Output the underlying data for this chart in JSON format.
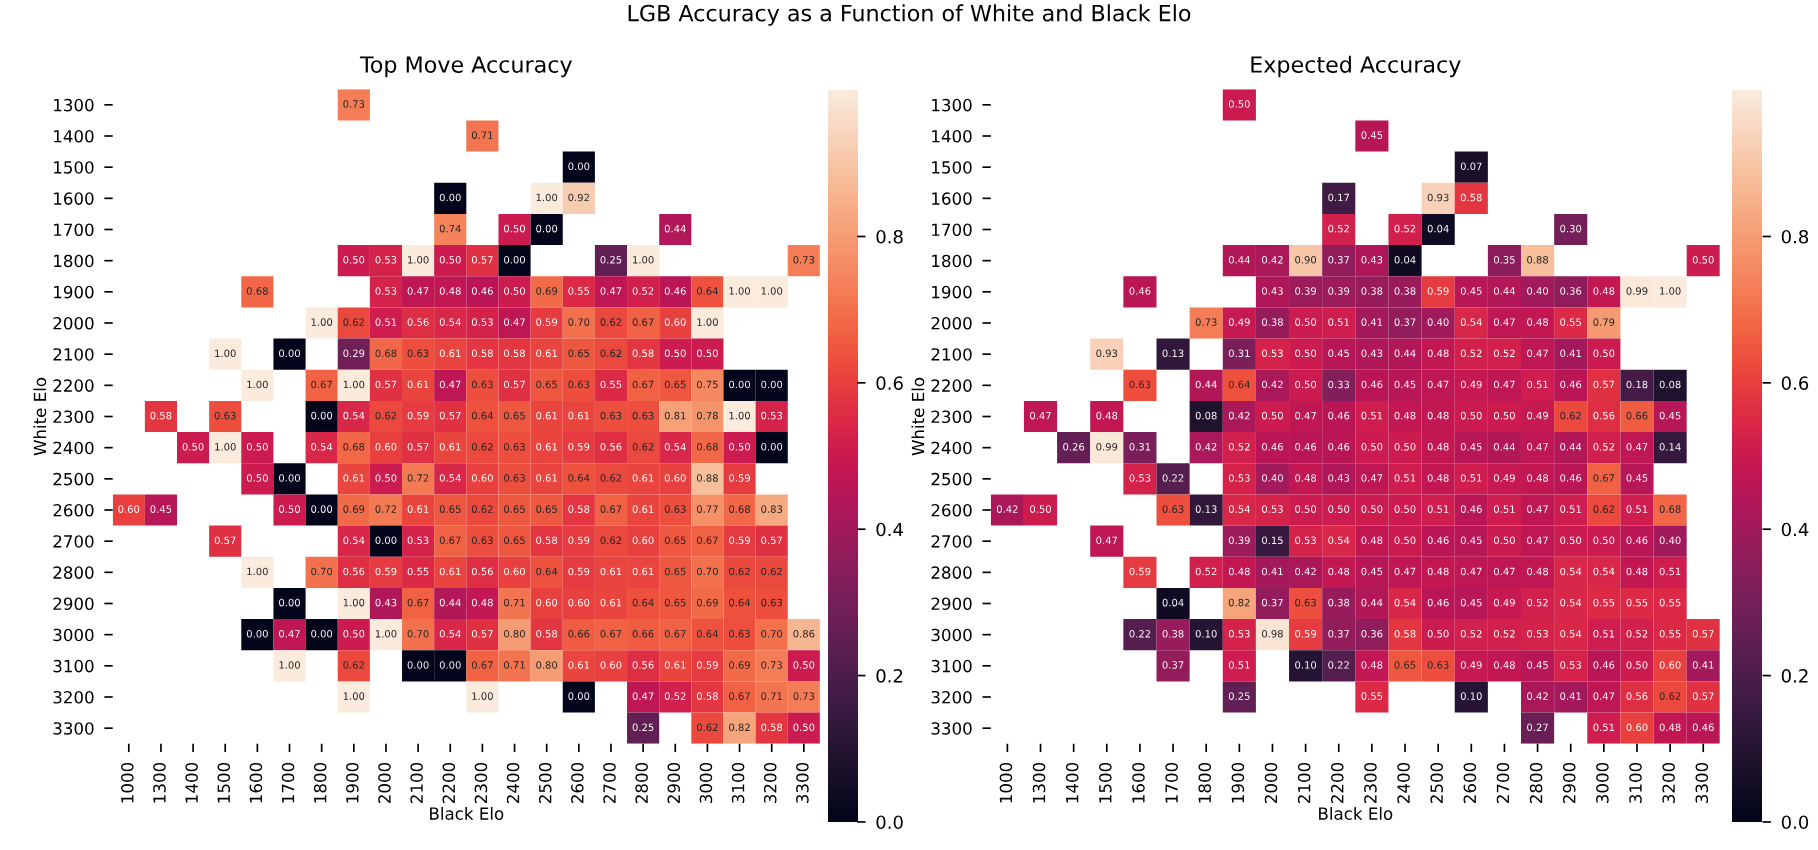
{
  "chart_data": [
    {
      "type": "heatmap",
      "title": "Top Move Accuracy",
      "xlabel": "Black Elo",
      "ylabel": "White Elo",
      "annotations": [
        "LGB Accuracy as a Function of White and Black Elo"
      ],
      "categories": [
        "1000",
        "1300",
        "1400",
        "1500",
        "1600",
        "1700",
        "1800",
        "1900",
        "2000",
        "2100",
        "2200",
        "2300",
        "2400",
        "2500",
        "2600",
        "2700",
        "2800",
        "2900",
        "3000",
        "3100",
        "3200",
        "3300"
      ],
      "y_categories": [
        "1300",
        "1400",
        "1500",
        "1600",
        "1700",
        "1800",
        "1900",
        "2000",
        "2100",
        "2200",
        "2300",
        "2400",
        "2500",
        "2600",
        "2700",
        "2800",
        "2900",
        "3000",
        "3100",
        "3200",
        "3300"
      ],
      "clim": [
        0,
        1
      ],
      "cticks": [
        {
          "value": 0,
          "label": "0.0"
        },
        {
          "value": 0.2,
          "label": "0.2"
        },
        {
          "value": 0.4,
          "label": "0.4"
        },
        {
          "value": 0.6,
          "label": "0.6"
        },
        {
          "value": 0.8,
          "label": "0.8"
        }
      ],
      "cell_labels": [
        [
          null,
          null,
          null,
          null,
          null,
          null,
          null,
          "0.73",
          null,
          null,
          null,
          null,
          null,
          null,
          null,
          null,
          null,
          null,
          null,
          null,
          null,
          null
        ],
        [
          null,
          null,
          null,
          null,
          null,
          null,
          null,
          null,
          null,
          null,
          null,
          "0.71",
          null,
          null,
          null,
          null,
          null,
          null,
          null,
          null,
          null,
          null
        ],
        [
          null,
          null,
          null,
          null,
          null,
          null,
          null,
          null,
          null,
          null,
          null,
          null,
          null,
          null,
          "0.00",
          null,
          null,
          null,
          null,
          null,
          null,
          null
        ],
        [
          null,
          null,
          null,
          null,
          null,
          null,
          null,
          null,
          null,
          null,
          "0.00",
          null,
          null,
          "1.00",
          "0.92",
          null,
          null,
          null,
          null,
          null,
          null,
          null
        ],
        [
          null,
          null,
          null,
          null,
          null,
          null,
          null,
          null,
          null,
          null,
          "0.74",
          null,
          "0.50",
          "0.00",
          null,
          null,
          null,
          "0.44",
          null,
          null,
          null,
          null
        ],
        [
          null,
          null,
          null,
          null,
          null,
          null,
          null,
          "0.50",
          "0.53",
          "1.00",
          "0.50",
          "0.57",
          "0.00",
          null,
          null,
          "0.25",
          "1.00",
          null,
          null,
          null,
          null,
          "0.73"
        ],
        [
          null,
          null,
          null,
          null,
          "0.68",
          null,
          null,
          null,
          "0.53",
          "0.47",
          "0.48",
          "0.46",
          "0.50",
          "0.69",
          "0.55",
          "0.47",
          "0.52",
          "0.46",
          "0.64",
          "1.00",
          "1.00",
          null
        ],
        [
          null,
          null,
          null,
          null,
          null,
          null,
          "1.00",
          "0.62",
          "0.51",
          "0.56",
          "0.54",
          "0.53",
          "0.47",
          "0.59",
          "0.70",
          "0.62",
          "0.67",
          "0.60",
          "1.00",
          null,
          null,
          null
        ],
        [
          null,
          null,
          null,
          "1.00",
          null,
          "0.00",
          null,
          "0.29",
          "0.68",
          "0.63",
          "0.61",
          "0.58",
          "0.58",
          "0.61",
          "0.65",
          "0.62",
          "0.58",
          "0.50",
          "0.50",
          null,
          null,
          null
        ],
        [
          null,
          null,
          null,
          null,
          "1.00",
          null,
          "0.67",
          "1.00",
          "0.57",
          "0.61",
          "0.47",
          "0.63",
          "0.57",
          "0.65",
          "0.63",
          "0.55",
          "0.67",
          "0.65",
          "0.75",
          "0.00",
          "0.00",
          null
        ],
        [
          null,
          "0.58",
          null,
          "0.63",
          null,
          null,
          "0.00",
          "0.54",
          "0.62",
          "0.59",
          "0.57",
          "0.64",
          "0.65",
          "0.61",
          "0.61",
          "0.63",
          "0.63",
          "0.81",
          "0.78",
          "1.00",
          "0.53",
          null
        ],
        [
          null,
          null,
          "0.50",
          "1.00",
          "0.50",
          null,
          "0.54",
          "0.68",
          "0.60",
          "0.57",
          "0.61",
          "0.62",
          "0.63",
          "0.61",
          "0.59",
          "0.56",
          "0.62",
          "0.54",
          "0.68",
          "0.50",
          "0.00",
          null
        ],
        [
          null,
          null,
          null,
          null,
          "0.50",
          "0.00",
          null,
          "0.61",
          "0.50",
          "0.72",
          "0.54",
          "0.60",
          "0.63",
          "0.61",
          "0.64",
          "0.62",
          "0.61",
          "0.60",
          "0.88",
          "0.59",
          null,
          null
        ],
        [
          "0.60",
          "0.45",
          null,
          null,
          null,
          "0.50",
          "0.00",
          "0.69",
          "0.72",
          "0.61",
          "0.65",
          "0.62",
          "0.65",
          "0.65",
          "0.58",
          "0.67",
          "0.61",
          "0.63",
          "0.77",
          "0.68",
          "0.83",
          null
        ],
        [
          null,
          null,
          null,
          "0.57",
          null,
          null,
          null,
          "0.54",
          "0.00",
          "0.53",
          "0.67",
          "0.63",
          "0.65",
          "0.58",
          "0.59",
          "0.62",
          "0.60",
          "0.65",
          "0.67",
          "0.59",
          "0.57",
          null
        ],
        [
          null,
          null,
          null,
          null,
          "1.00",
          null,
          "0.70",
          "0.56",
          "0.59",
          "0.55",
          "0.61",
          "0.56",
          "0.60",
          "0.64",
          "0.59",
          "0.61",
          "0.61",
          "0.65",
          "0.70",
          "0.62",
          "0.62",
          null
        ],
        [
          null,
          null,
          null,
          null,
          null,
          "0.00",
          null,
          "1.00",
          "0.43",
          "0.67",
          "0.44",
          "0.48",
          "0.71",
          "0.60",
          "0.60",
          "0.61",
          "0.64",
          "0.65",
          "0.69",
          "0.64",
          "0.63",
          null
        ],
        [
          null,
          null,
          null,
          null,
          "0.00",
          "0.47",
          "0.00",
          "0.50",
          "1.00",
          "0.70",
          "0.54",
          "0.57",
          "0.80",
          "0.58",
          "0.66",
          "0.67",
          "0.66",
          "0.67",
          "0.64",
          "0.63",
          "0.70",
          "0.86"
        ],
        [
          null,
          null,
          null,
          null,
          null,
          "1.00",
          null,
          "0.62",
          null,
          "0.00",
          "0.00",
          "0.67",
          "0.71",
          "0.80",
          "0.61",
          "0.60",
          "0.56",
          "0.61",
          "0.59",
          "0.69",
          "0.73",
          "0.50"
        ],
        [
          null,
          null,
          null,
          null,
          null,
          null,
          null,
          "1.00",
          null,
          null,
          null,
          "1.00",
          null,
          null,
          "0.00",
          null,
          "0.47",
          "0.52",
          "0.58",
          "0.67",
          "0.71",
          "0.73"
        ],
        [
          null,
          null,
          null,
          null,
          null,
          null,
          null,
          null,
          null,
          null,
          null,
          null,
          null,
          null,
          null,
          null,
          "0.25",
          null,
          "0.62",
          "0.82",
          "0.58",
          "0.50"
        ]
      ],
      "cells": [
        [
          null,
          null,
          null,
          null,
          null,
          null,
          null,
          0.73,
          null,
          null,
          null,
          null,
          null,
          null,
          null,
          null,
          null,
          null,
          null,
          null,
          null,
          null
        ],
        [
          null,
          null,
          null,
          null,
          null,
          null,
          null,
          null,
          null,
          null,
          null,
          0.71,
          null,
          null,
          null,
          null,
          null,
          null,
          null,
          null,
          null,
          null
        ],
        [
          null,
          null,
          null,
          null,
          null,
          null,
          null,
          null,
          null,
          null,
          null,
          null,
          null,
          null,
          0.0,
          null,
          null,
          null,
          null,
          null,
          null,
          null
        ],
        [
          null,
          null,
          null,
          null,
          null,
          null,
          null,
          null,
          null,
          null,
          0.0,
          null,
          null,
          1.0,
          0.92,
          null,
          null,
          null,
          null,
          null,
          null,
          null
        ],
        [
          null,
          null,
          null,
          null,
          null,
          null,
          null,
          null,
          null,
          null,
          0.74,
          null,
          0.5,
          0.0,
          null,
          null,
          null,
          0.44,
          null,
          null,
          null,
          null
        ],
        [
          null,
          null,
          null,
          null,
          null,
          null,
          null,
          0.5,
          0.53,
          1.0,
          0.5,
          0.57,
          0.0,
          null,
          null,
          0.25,
          1.0,
          null,
          null,
          null,
          null,
          0.73
        ],
        [
          null,
          null,
          null,
          null,
          0.68,
          null,
          null,
          null,
          0.53,
          0.47,
          0.48,
          0.46,
          0.5,
          0.69,
          0.55,
          0.47,
          0.52,
          0.46,
          0.64,
          1.0,
          1.0,
          null
        ],
        [
          null,
          null,
          null,
          null,
          null,
          null,
          1.0,
          0.62,
          0.51,
          0.56,
          0.54,
          0.53,
          0.47,
          0.59,
          0.7,
          0.62,
          0.67,
          0.6,
          1.0,
          null,
          null,
          null
        ],
        [
          null,
          null,
          null,
          1.0,
          null,
          0.0,
          null,
          0.29,
          0.68,
          0.63,
          0.61,
          0.58,
          0.58,
          0.61,
          0.65,
          0.62,
          0.58,
          0.5,
          0.5,
          null,
          null,
          null
        ],
        [
          null,
          null,
          null,
          null,
          1.0,
          null,
          0.67,
          1.0,
          0.57,
          0.61,
          0.47,
          0.63,
          0.57,
          0.65,
          0.63,
          0.55,
          0.67,
          0.65,
          0.75,
          0.0,
          0.0,
          null
        ],
        [
          null,
          0.58,
          null,
          0.63,
          null,
          null,
          0.0,
          0.54,
          0.62,
          0.59,
          0.57,
          0.64,
          0.65,
          0.61,
          0.61,
          0.63,
          0.63,
          0.81,
          0.78,
          1.0,
          0.53,
          null
        ],
        [
          null,
          null,
          0.5,
          1.0,
          0.5,
          null,
          0.54,
          0.68,
          0.6,
          0.57,
          0.61,
          0.62,
          0.63,
          0.61,
          0.59,
          0.56,
          0.62,
          0.54,
          0.68,
          0.5,
          0.0,
          null
        ],
        [
          null,
          null,
          null,
          null,
          0.5,
          0.0,
          null,
          0.61,
          0.5,
          0.72,
          0.54,
          0.6,
          0.63,
          0.61,
          0.64,
          0.62,
          0.61,
          0.6,
          0.88,
          0.59,
          null,
          null
        ],
        [
          0.6,
          0.45,
          null,
          null,
          null,
          0.5,
          0.0,
          0.69,
          0.72,
          0.61,
          0.65,
          0.62,
          0.65,
          0.65,
          0.58,
          0.67,
          0.61,
          0.63,
          0.77,
          0.68,
          0.83,
          null
        ],
        [
          null,
          null,
          null,
          0.57,
          null,
          null,
          null,
          0.54,
          0.0,
          0.53,
          0.67,
          0.63,
          0.65,
          0.58,
          0.59,
          0.62,
          0.6,
          0.65,
          0.67,
          0.59,
          0.57,
          null
        ],
        [
          null,
          null,
          null,
          null,
          1.0,
          null,
          0.7,
          0.56,
          0.59,
          0.55,
          0.61,
          0.56,
          0.6,
          0.64,
          0.59,
          0.61,
          0.61,
          0.65,
          0.7,
          0.62,
          0.62,
          null
        ],
        [
          null,
          null,
          null,
          null,
          null,
          0.0,
          null,
          1.0,
          0.43,
          0.67,
          0.44,
          0.48,
          0.71,
          0.6,
          0.6,
          0.61,
          0.64,
          0.65,
          0.69,
          0.64,
          0.63,
          null
        ],
        [
          null,
          null,
          null,
          null,
          0.0,
          0.47,
          0.0,
          0.5,
          1.0,
          0.7,
          0.54,
          0.57,
          0.8,
          0.58,
          0.66,
          0.67,
          0.66,
          0.67,
          0.64,
          0.63,
          0.7,
          0.86
        ],
        [
          null,
          null,
          null,
          null,
          null,
          1.0,
          null,
          0.62,
          null,
          0.0,
          0.0,
          0.67,
          0.71,
          0.8,
          0.61,
          0.6,
          0.56,
          0.61,
          0.59,
          0.69,
          0.73,
          0.5
        ],
        [
          null,
          null,
          null,
          null,
          null,
          null,
          null,
          1.0,
          null,
          null,
          null,
          1.0,
          null,
          null,
          0.0,
          null,
          0.47,
          0.52,
          0.58,
          0.67,
          0.71,
          0.73
        ],
        [
          null,
          null,
          null,
          null,
          null,
          null,
          null,
          null,
          null,
          null,
          null,
          null,
          null,
          null,
          null,
          null,
          0.25,
          null,
          0.62,
          0.82,
          0.58,
          0.5
        ]
      ]
    },
    {
      "type": "heatmap",
      "title": "Expected Accuracy",
      "xlabel": "Black Elo",
      "ylabel": "White Elo",
      "categories": [
        "1000",
        "1300",
        "1400",
        "1500",
        "1600",
        "1700",
        "1800",
        "1900",
        "2000",
        "2100",
        "2200",
        "2300",
        "2400",
        "2500",
        "2600",
        "2700",
        "2800",
        "2900",
        "3000",
        "3100",
        "3200",
        "3300"
      ],
      "y_categories": [
        "1300",
        "1400",
        "1500",
        "1600",
        "1700",
        "1800",
        "1900",
        "2000",
        "2100",
        "2200",
        "2300",
        "2400",
        "2500",
        "2600",
        "2700",
        "2800",
        "2900",
        "3000",
        "3100",
        "3200",
        "3300"
      ],
      "clim": [
        0,
        1
      ],
      "cticks": [
        {
          "value": 0,
          "label": "0.0"
        },
        {
          "value": 0.2,
          "label": "0.2"
        },
        {
          "value": 0.4,
          "label": "0.4"
        },
        {
          "value": 0.6,
          "label": "0.6"
        },
        {
          "value": 0.8,
          "label": "0.8"
        }
      ],
      "cell_labels": [
        [
          null,
          null,
          null,
          null,
          null,
          null,
          null,
          "0.50",
          null,
          null,
          null,
          null,
          null,
          null,
          null,
          null,
          null,
          null,
          null,
          null,
          null,
          null
        ],
        [
          null,
          null,
          null,
          null,
          null,
          null,
          null,
          null,
          null,
          null,
          null,
          "0.45",
          null,
          null,
          null,
          null,
          null,
          null,
          null,
          null,
          null,
          null
        ],
        [
          null,
          null,
          null,
          null,
          null,
          null,
          null,
          null,
          null,
          null,
          null,
          null,
          null,
          null,
          "0.07",
          null,
          null,
          null,
          null,
          null,
          null,
          null
        ],
        [
          null,
          null,
          null,
          null,
          null,
          null,
          null,
          null,
          null,
          null,
          "0.17",
          null,
          null,
          "0.93",
          "0.58",
          null,
          null,
          null,
          null,
          null,
          null,
          null
        ],
        [
          null,
          null,
          null,
          null,
          null,
          null,
          null,
          null,
          null,
          null,
          "0.52",
          null,
          "0.52",
          "0.04",
          null,
          null,
          null,
          "0.30",
          null,
          null,
          null,
          null
        ],
        [
          null,
          null,
          null,
          null,
          null,
          null,
          null,
          "0.44",
          "0.42",
          "0.90",
          "0.37",
          "0.43",
          "0.04",
          null,
          null,
          "0.35",
          "0.88",
          null,
          null,
          null,
          null,
          "0.50"
        ],
        [
          null,
          null,
          null,
          null,
          "0.46",
          null,
          null,
          null,
          "0.43",
          "0.39",
          "0.39",
          "0.38",
          "0.38",
          "0.59",
          "0.45",
          "0.44",
          "0.40",
          "0.36",
          "0.48",
          "0.99",
          "1.00",
          null
        ],
        [
          null,
          null,
          null,
          null,
          null,
          null,
          "0.73",
          "0.49",
          "0.38",
          "0.50",
          "0.51",
          "0.41",
          "0.37",
          "0.40",
          "0.54",
          "0.47",
          "0.48",
          "0.55",
          "0.79",
          null,
          null,
          null
        ],
        [
          null,
          null,
          null,
          "0.93",
          null,
          "0.13",
          null,
          "0.31",
          "0.53",
          "0.50",
          "0.45",
          "0.43",
          "0.44",
          "0.48",
          "0.52",
          "0.52",
          "0.47",
          "0.41",
          "0.50",
          null,
          null,
          null
        ],
        [
          null,
          null,
          null,
          null,
          "0.63",
          null,
          "0.44",
          "0.64",
          "0.42",
          "0.50",
          "0.33",
          "0.46",
          "0.45",
          "0.47",
          "0.49",
          "0.47",
          "0.51",
          "0.46",
          "0.57",
          "0.18",
          "0.08",
          null
        ],
        [
          null,
          "0.47",
          null,
          "0.48",
          null,
          null,
          "0.08",
          "0.42",
          "0.50",
          "0.47",
          "0.46",
          "0.51",
          "0.48",
          "0.48",
          "0.50",
          "0.50",
          "0.49",
          "0.62",
          "0.56",
          "0.66",
          "0.45",
          null
        ],
        [
          null,
          null,
          "0.26",
          "0.99",
          "0.31",
          null,
          "0.42",
          "0.52",
          "0.46",
          "0.46",
          "0.46",
          "0.50",
          "0.50",
          "0.48",
          "0.45",
          "0.44",
          "0.47",
          "0.44",
          "0.52",
          "0.47",
          "0.14",
          null
        ],
        [
          null,
          null,
          null,
          null,
          "0.53",
          "0.22",
          null,
          "0.53",
          "0.40",
          "0.48",
          "0.43",
          "0.47",
          "0.51",
          "0.48",
          "0.51",
          "0.49",
          "0.48",
          "0.46",
          "0.67",
          "0.45",
          null,
          null
        ],
        [
          "0.42",
          "0.50",
          null,
          null,
          null,
          "0.63",
          "0.13",
          "0.54",
          "0.53",
          "0.50",
          "0.50",
          "0.50",
          "0.50",
          "0.51",
          "0.46",
          "0.51",
          "0.47",
          "0.51",
          "0.62",
          "0.51",
          "0.68",
          null
        ],
        [
          null,
          null,
          null,
          "0.47",
          null,
          null,
          null,
          "0.39",
          "0.15",
          "0.53",
          "0.54",
          "0.48",
          "0.50",
          "0.46",
          "0.45",
          "0.50",
          "0.47",
          "0.50",
          "0.50",
          "0.46",
          "0.40",
          null
        ],
        [
          null,
          null,
          null,
          null,
          "0.59",
          null,
          "0.52",
          "0.48",
          "0.41",
          "0.42",
          "0.48",
          "0.45",
          "0.47",
          "0.48",
          "0.47",
          "0.47",
          "0.48",
          "0.54",
          "0.54",
          "0.48",
          "0.51",
          null
        ],
        [
          null,
          null,
          null,
          null,
          null,
          "0.04",
          null,
          "0.82",
          "0.37",
          "0.63",
          "0.38",
          "0.44",
          "0.54",
          "0.46",
          "0.45",
          "0.49",
          "0.52",
          "0.54",
          "0.55",
          "0.55",
          "0.55",
          null
        ],
        [
          null,
          null,
          null,
          null,
          "0.22",
          "0.38",
          "0.10",
          "0.53",
          "0.98",
          "0.59",
          "0.37",
          "0.36",
          "0.58",
          "0.50",
          "0.52",
          "0.52",
          "0.53",
          "0.54",
          "0.51",
          "0.52",
          "0.55",
          "0.57"
        ],
        [
          null,
          null,
          null,
          null,
          null,
          "0.37",
          null,
          "0.51",
          null,
          "0.10",
          "0.22",
          "0.48",
          "0.65",
          "0.63",
          "0.49",
          "0.48",
          "0.45",
          "0.53",
          "0.46",
          "0.50",
          "0.60",
          "0.41"
        ],
        [
          null,
          null,
          null,
          null,
          null,
          null,
          null,
          "0.25",
          null,
          null,
          null,
          "0.55",
          null,
          null,
          "0.10",
          null,
          "0.42",
          "0.41",
          "0.47",
          "0.56",
          "0.62",
          "0.57"
        ],
        [
          null,
          null,
          null,
          null,
          null,
          null,
          null,
          null,
          null,
          null,
          null,
          null,
          null,
          null,
          null,
          null,
          "0.27",
          null,
          "0.51",
          "0.60",
          "0.48",
          "0.46"
        ]
      ],
      "cells": [
        [
          null,
          null,
          null,
          null,
          null,
          null,
          null,
          0.5,
          null,
          null,
          null,
          null,
          null,
          null,
          null,
          null,
          null,
          null,
          null,
          null,
          null,
          null
        ],
        [
          null,
          null,
          null,
          null,
          null,
          null,
          null,
          null,
          null,
          null,
          null,
          0.45,
          null,
          null,
          null,
          null,
          null,
          null,
          null,
          null,
          null,
          null
        ],
        [
          null,
          null,
          null,
          null,
          null,
          null,
          null,
          null,
          null,
          null,
          null,
          null,
          null,
          null,
          0.07,
          null,
          null,
          null,
          null,
          null,
          null,
          null
        ],
        [
          null,
          null,
          null,
          null,
          null,
          null,
          null,
          null,
          null,
          null,
          0.17,
          null,
          null,
          0.93,
          0.58,
          null,
          null,
          null,
          null,
          null,
          null,
          null
        ],
        [
          null,
          null,
          null,
          null,
          null,
          null,
          null,
          null,
          null,
          null,
          0.52,
          null,
          0.52,
          0.04,
          null,
          null,
          null,
          0.3,
          null,
          null,
          null,
          null
        ],
        [
          null,
          null,
          null,
          null,
          null,
          null,
          null,
          0.44,
          0.42,
          0.9,
          0.37,
          0.43,
          0.04,
          null,
          null,
          0.35,
          0.88,
          null,
          null,
          null,
          null,
          0.5
        ],
        [
          null,
          null,
          null,
          null,
          0.46,
          null,
          null,
          null,
          0.43,
          0.39,
          0.39,
          0.38,
          0.38,
          0.59,
          0.45,
          0.44,
          0.4,
          0.36,
          0.48,
          0.99,
          1.0,
          null
        ],
        [
          null,
          null,
          null,
          null,
          null,
          null,
          0.73,
          0.49,
          0.38,
          0.5,
          0.51,
          0.41,
          0.37,
          0.4,
          0.54,
          0.47,
          0.48,
          0.55,
          0.79,
          null,
          null,
          null
        ],
        [
          null,
          null,
          null,
          0.93,
          null,
          0.13,
          null,
          0.31,
          0.53,
          0.5,
          0.45,
          0.43,
          0.44,
          0.48,
          0.52,
          0.52,
          0.47,
          0.41,
          0.5,
          null,
          null,
          null
        ],
        [
          null,
          null,
          null,
          null,
          0.63,
          null,
          0.44,
          0.64,
          0.42,
          0.5,
          0.33,
          0.46,
          0.45,
          0.47,
          0.49,
          0.47,
          0.51,
          0.46,
          0.57,
          0.18,
          0.08,
          null
        ],
        [
          null,
          0.47,
          null,
          0.48,
          null,
          null,
          0.08,
          0.42,
          0.5,
          0.47,
          0.46,
          0.51,
          0.48,
          0.48,
          0.5,
          0.5,
          0.49,
          0.62,
          0.56,
          0.66,
          0.45,
          null
        ],
        [
          null,
          null,
          0.26,
          0.99,
          0.31,
          null,
          0.42,
          0.52,
          0.46,
          0.46,
          0.46,
          0.5,
          0.5,
          0.48,
          0.45,
          0.44,
          0.47,
          0.44,
          0.52,
          0.47,
          0.14,
          null
        ],
        [
          null,
          null,
          null,
          null,
          0.53,
          0.22,
          null,
          0.53,
          0.4,
          0.48,
          0.43,
          0.47,
          0.51,
          0.48,
          0.51,
          0.49,
          0.48,
          0.46,
          0.67,
          0.45,
          null,
          null
        ],
        [
          0.42,
          0.5,
          null,
          null,
          null,
          0.63,
          0.13,
          0.54,
          0.53,
          0.5,
          0.5,
          0.5,
          0.5,
          0.51,
          0.46,
          0.51,
          0.47,
          0.51,
          0.62,
          0.51,
          0.68,
          null
        ],
        [
          null,
          null,
          null,
          0.47,
          null,
          null,
          null,
          0.39,
          0.15,
          0.53,
          0.54,
          0.48,
          0.5,
          0.46,
          0.45,
          0.5,
          0.47,
          0.5,
          0.5,
          0.46,
          0.4,
          null
        ],
        [
          null,
          null,
          null,
          null,
          0.59,
          null,
          0.52,
          0.48,
          0.41,
          0.42,
          0.48,
          0.45,
          0.47,
          0.48,
          0.47,
          0.47,
          0.48,
          0.54,
          0.54,
          0.48,
          0.51,
          null
        ],
        [
          null,
          null,
          null,
          null,
          null,
          0.04,
          null,
          0.82,
          0.37,
          0.63,
          0.38,
          0.44,
          0.54,
          0.46,
          0.45,
          0.49,
          0.52,
          0.54,
          0.55,
          0.55,
          0.55,
          null
        ],
        [
          null,
          null,
          null,
          null,
          0.22,
          0.38,
          0.1,
          0.53,
          0.98,
          0.59,
          0.37,
          0.36,
          0.58,
          0.5,
          0.52,
          0.52,
          0.53,
          0.54,
          0.51,
          0.52,
          0.55,
          0.57
        ],
        [
          null,
          null,
          null,
          null,
          null,
          0.37,
          null,
          0.51,
          null,
          0.1,
          0.22,
          0.48,
          0.65,
          0.63,
          0.49,
          0.48,
          0.45,
          0.53,
          0.46,
          0.5,
          0.6,
          0.41
        ],
        [
          null,
          null,
          null,
          null,
          null,
          null,
          null,
          0.25,
          null,
          null,
          null,
          0.55,
          null,
          null,
          0.1,
          null,
          0.42,
          0.41,
          0.47,
          0.56,
          0.62,
          0.57
        ],
        [
          null,
          null,
          null,
          null,
          null,
          null,
          null,
          null,
          null,
          null,
          null,
          null,
          null,
          null,
          null,
          null,
          0.27,
          null,
          0.51,
          0.6,
          0.48,
          0.46
        ]
      ]
    }
  ]
}
